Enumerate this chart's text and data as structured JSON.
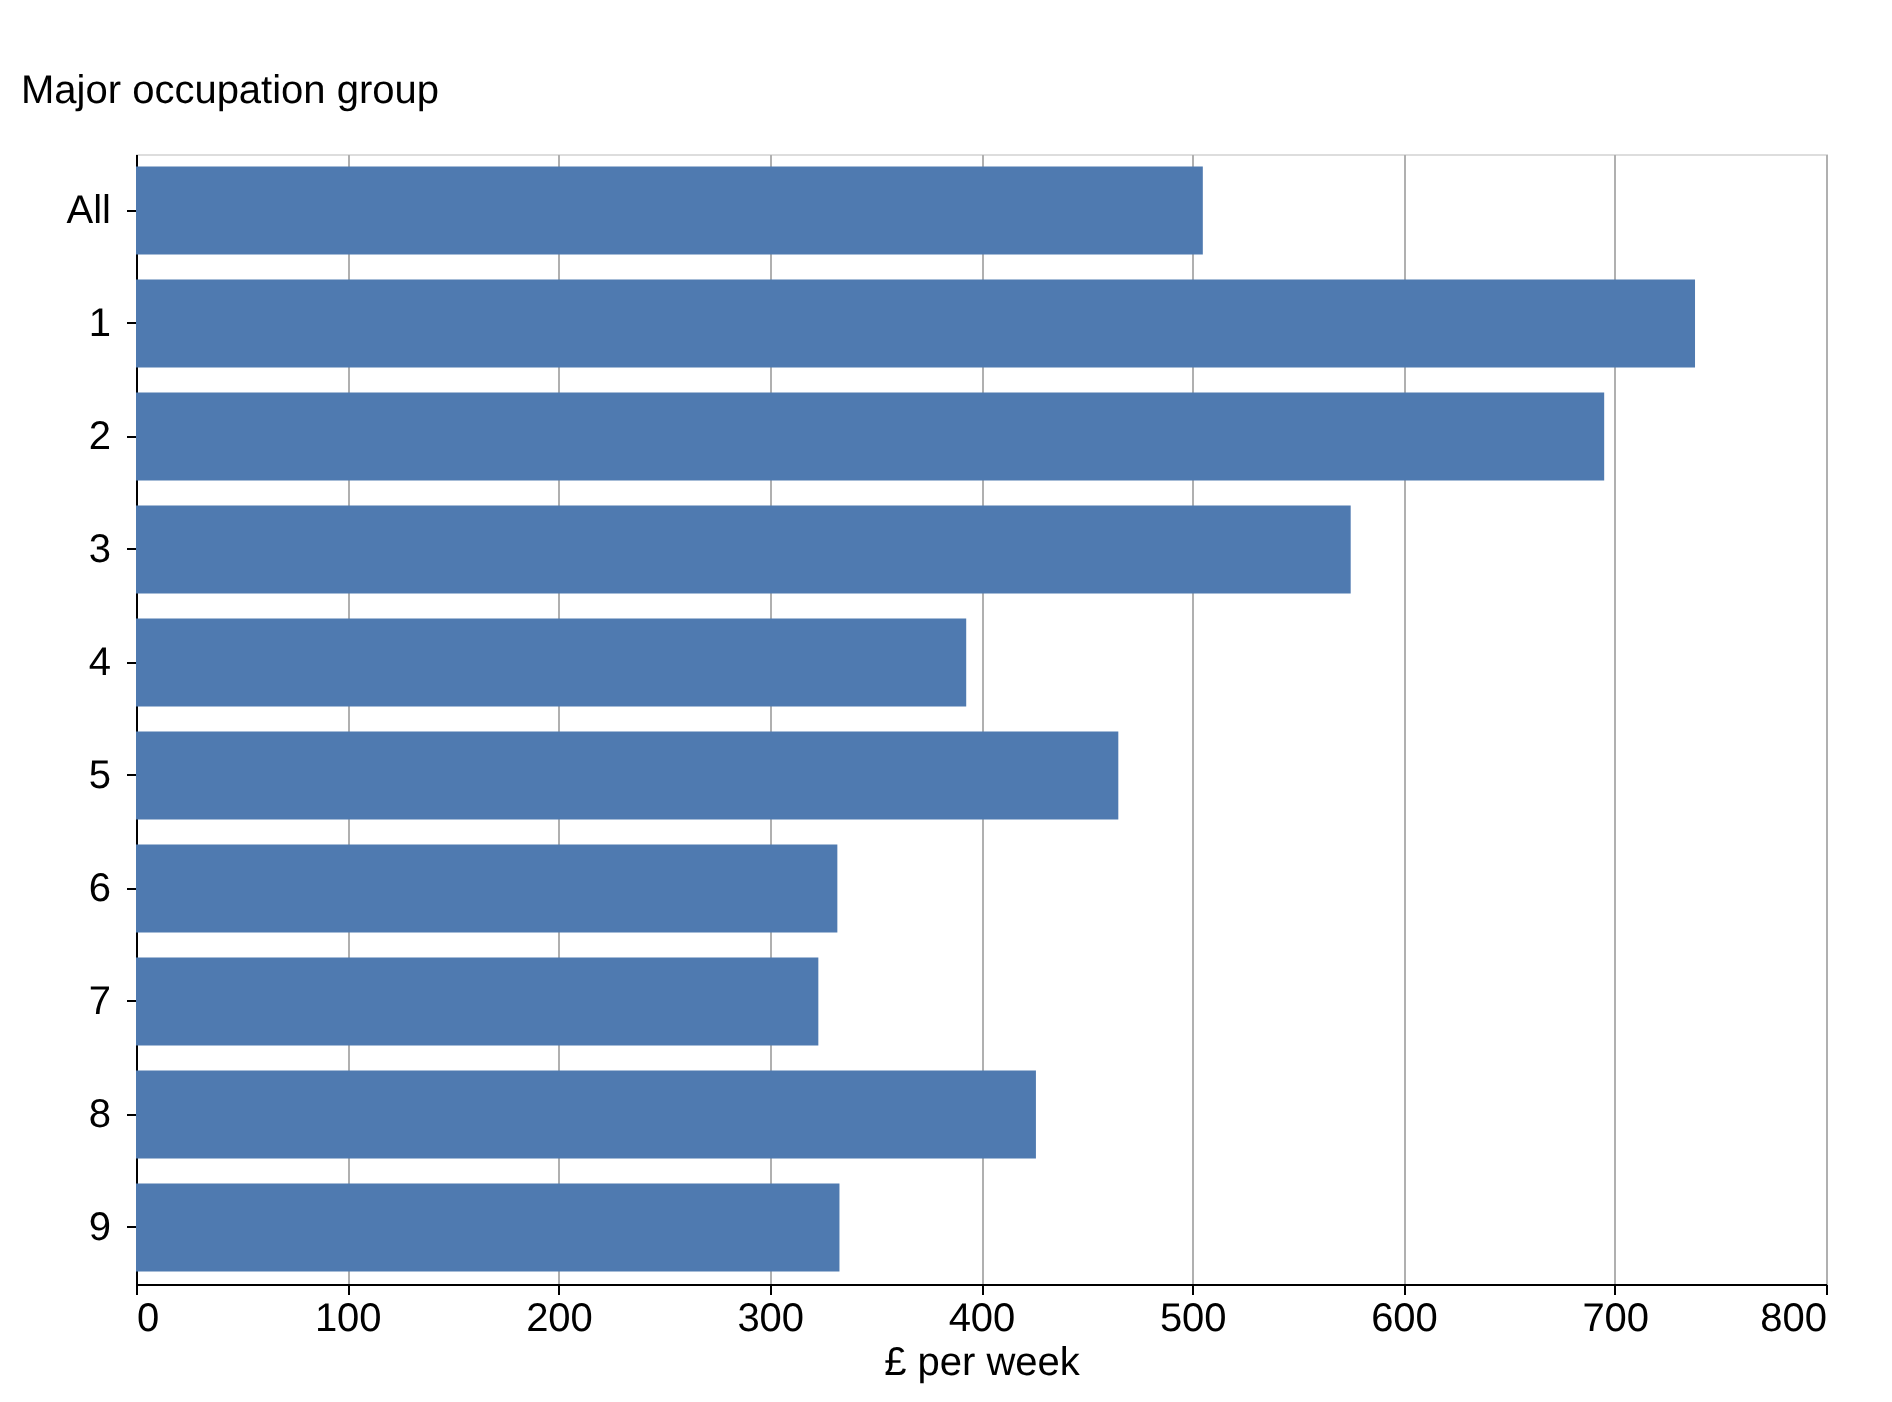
{
  "chart_data": {
    "type": "bar",
    "orientation": "horizontal",
    "ylabel": "Major occupation group",
    "xlabel": "£ per week",
    "categories": [
      "All",
      "1",
      "2",
      "3",
      "4",
      "5",
      "6",
      "7",
      "8",
      "9"
    ],
    "values": [
      505,
      738,
      695,
      575,
      393,
      465,
      332,
      323,
      426,
      333
    ],
    "color": "#4f7ab0",
    "xlim": [
      0,
      800
    ],
    "xticks": [
      0,
      100,
      200,
      300,
      400,
      500,
      600,
      700,
      800
    ],
    "grid": "x"
  }
}
